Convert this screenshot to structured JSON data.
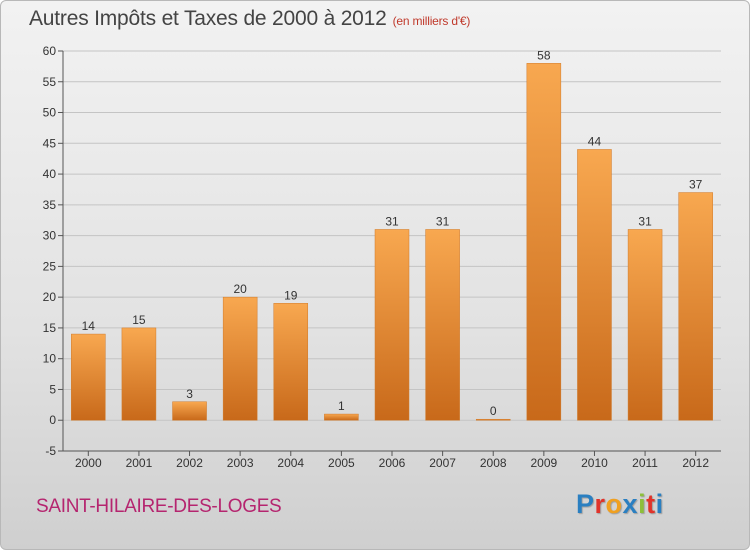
{
  "header": {
    "title": "Autres Impôts et Taxes de 2000 à 2012",
    "subtitle": "(en milliers d'€)"
  },
  "footer": {
    "city": "SAINT-HILAIRE-DES-LOGES",
    "logo_letters": [
      "P",
      "r",
      "o",
      "x",
      "i",
      "t",
      "i"
    ],
    "logo_colors": [
      "#2a7fc1",
      "#e0332a",
      "#f0a020",
      "#2a7fc1",
      "#8dbf3a",
      "#e0332a",
      "#2a7fc1"
    ]
  },
  "chart_data": {
    "type": "bar",
    "categories": [
      "2000",
      "2001",
      "2002",
      "2003",
      "2004",
      "2005",
      "2006",
      "2007",
      "2008",
      "2009",
      "2010",
      "2011",
      "2012"
    ],
    "values": [
      14,
      15,
      3,
      20,
      19,
      1,
      31,
      31,
      0,
      58,
      44,
      31,
      37
    ],
    "ylim": [
      -5,
      60
    ],
    "yticks": [
      -5,
      0,
      5,
      10,
      15,
      20,
      25,
      30,
      35,
      40,
      45,
      50,
      55,
      60
    ],
    "grid": true,
    "bar_color_top": "#f8a850",
    "bar_color_bottom": "#c8691a"
  }
}
